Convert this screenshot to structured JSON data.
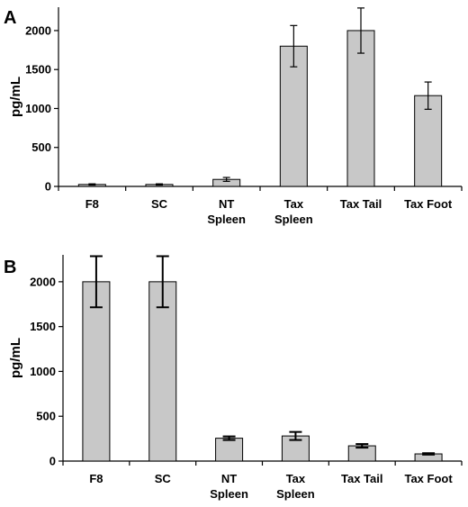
{
  "chart_data": [
    {
      "type": "bar",
      "panel": "A",
      "ylabel": "pg/mL",
      "categories": [
        [
          "F8"
        ],
        [
          "SC"
        ],
        [
          "NT",
          "Spleen"
        ],
        [
          "Tax",
          "Spleen"
        ],
        [
          "Tax Tail"
        ],
        [
          "Tax Foot"
        ]
      ],
      "values": [
        25,
        25,
        90,
        1800,
        2000,
        1165
      ],
      "errors": [
        8,
        8,
        25,
        265,
        290,
        175
      ],
      "ylim": [
        0,
        2300
      ],
      "yticks": [
        0,
        500,
        1000,
        1500,
        2000
      ],
      "bar_color": "#c8c8c8",
      "grid": false
    },
    {
      "type": "bar",
      "panel": "B",
      "ylabel": "pg/mL",
      "categories": [
        [
          "F8"
        ],
        [
          "SC"
        ],
        [
          "NT",
          "Spleen"
        ],
        [
          "Tax",
          "Spleen"
        ],
        [
          "Tax Tail"
        ],
        [
          "Tax Foot"
        ]
      ],
      "values": [
        2000,
        2000,
        255,
        280,
        170,
        80
      ],
      "errors": [
        285,
        285,
        20,
        45,
        20,
        8
      ],
      "ylim": [
        0,
        2300
      ],
      "yticks": [
        0,
        500,
        1000,
        1500,
        2000
      ],
      "bar_color": "#c8c8c8",
      "grid": false
    }
  ]
}
